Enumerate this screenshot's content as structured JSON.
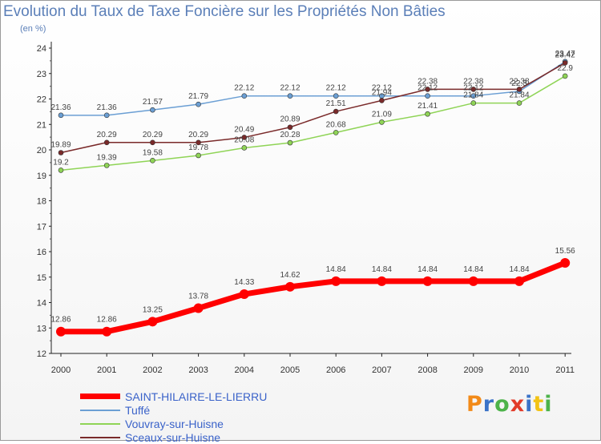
{
  "title": "Evolution du Taux de Taxe Foncière sur les Propriétés Non Bâties",
  "unit": "(en %)",
  "logo": {
    "text": "Proxiti",
    "colors": [
      "#f28a18",
      "#3b73c8",
      "#4db34a",
      "#e23c2a",
      "#3b73c8",
      "#f2c315",
      "#4db34a"
    ]
  },
  "chart_data": {
    "type": "line",
    "x": [
      "2000",
      "2001",
      "2002",
      "2003",
      "2004",
      "2005",
      "2006",
      "2007",
      "2008",
      "2009",
      "2010",
      "2011"
    ],
    "ylim": [
      12,
      24
    ],
    "yticks": [
      "12",
      "13",
      "14",
      "15",
      "16",
      "17",
      "18",
      "19",
      "20",
      "21",
      "22",
      "23",
      "24"
    ],
    "grid": false,
    "legend_position": "bottom-left",
    "series": [
      {
        "name": "SAINT-HILAIRE-LE-LIERRU",
        "color": "#ff0000",
        "values": [
          12.86,
          12.86,
          13.25,
          13.78,
          14.33,
          14.62,
          14.84,
          14.84,
          14.84,
          14.84,
          14.84,
          15.56
        ],
        "labels": [
          "12.86",
          "12.86",
          "13.25",
          "13.78",
          "14.33",
          "14.62",
          "14.84",
          "14.84",
          "14.84",
          "14.84",
          "14.84",
          "15.56"
        ]
      },
      {
        "name": "Tuffé",
        "color": "#6b9fd4",
        "values": [
          21.36,
          21.36,
          21.57,
          21.79,
          22.12,
          22.12,
          22.12,
          22.12,
          22.12,
          22.12,
          22.3,
          23.47
        ],
        "labels": [
          "21.36",
          "21.36",
          "21.57",
          "21.79",
          "22.12",
          "22.12",
          "22.12",
          "22.12",
          "22.12",
          "22.12",
          "22.3",
          "23.47"
        ]
      },
      {
        "name": "Vouvray-sur-Huisne",
        "color": "#8fd456",
        "values": [
          19.2,
          19.39,
          19.58,
          19.78,
          20.08,
          20.28,
          20.68,
          21.09,
          21.41,
          21.84,
          21.84,
          22.9
        ],
        "labels": [
          "19.2",
          "19.39",
          "19.58",
          "19.78",
          "20.08",
          "20.28",
          "20.68",
          "21.09",
          "21.41",
          "21.84",
          "21.84",
          "22.9"
        ]
      },
      {
        "name": "Sceaux-sur-Huisne",
        "color": "#7a2a2a",
        "values": [
          19.89,
          20.29,
          20.29,
          20.29,
          20.49,
          20.89,
          21.51,
          21.94,
          22.38,
          22.38,
          22.38,
          23.42
        ],
        "labels": [
          "19.89",
          "20.29",
          "20.29",
          "20.29",
          "20.49",
          "20.89",
          "21.51",
          "21.94",
          "22.38",
          "22.38",
          "22.38",
          "23.42"
        ]
      }
    ]
  }
}
